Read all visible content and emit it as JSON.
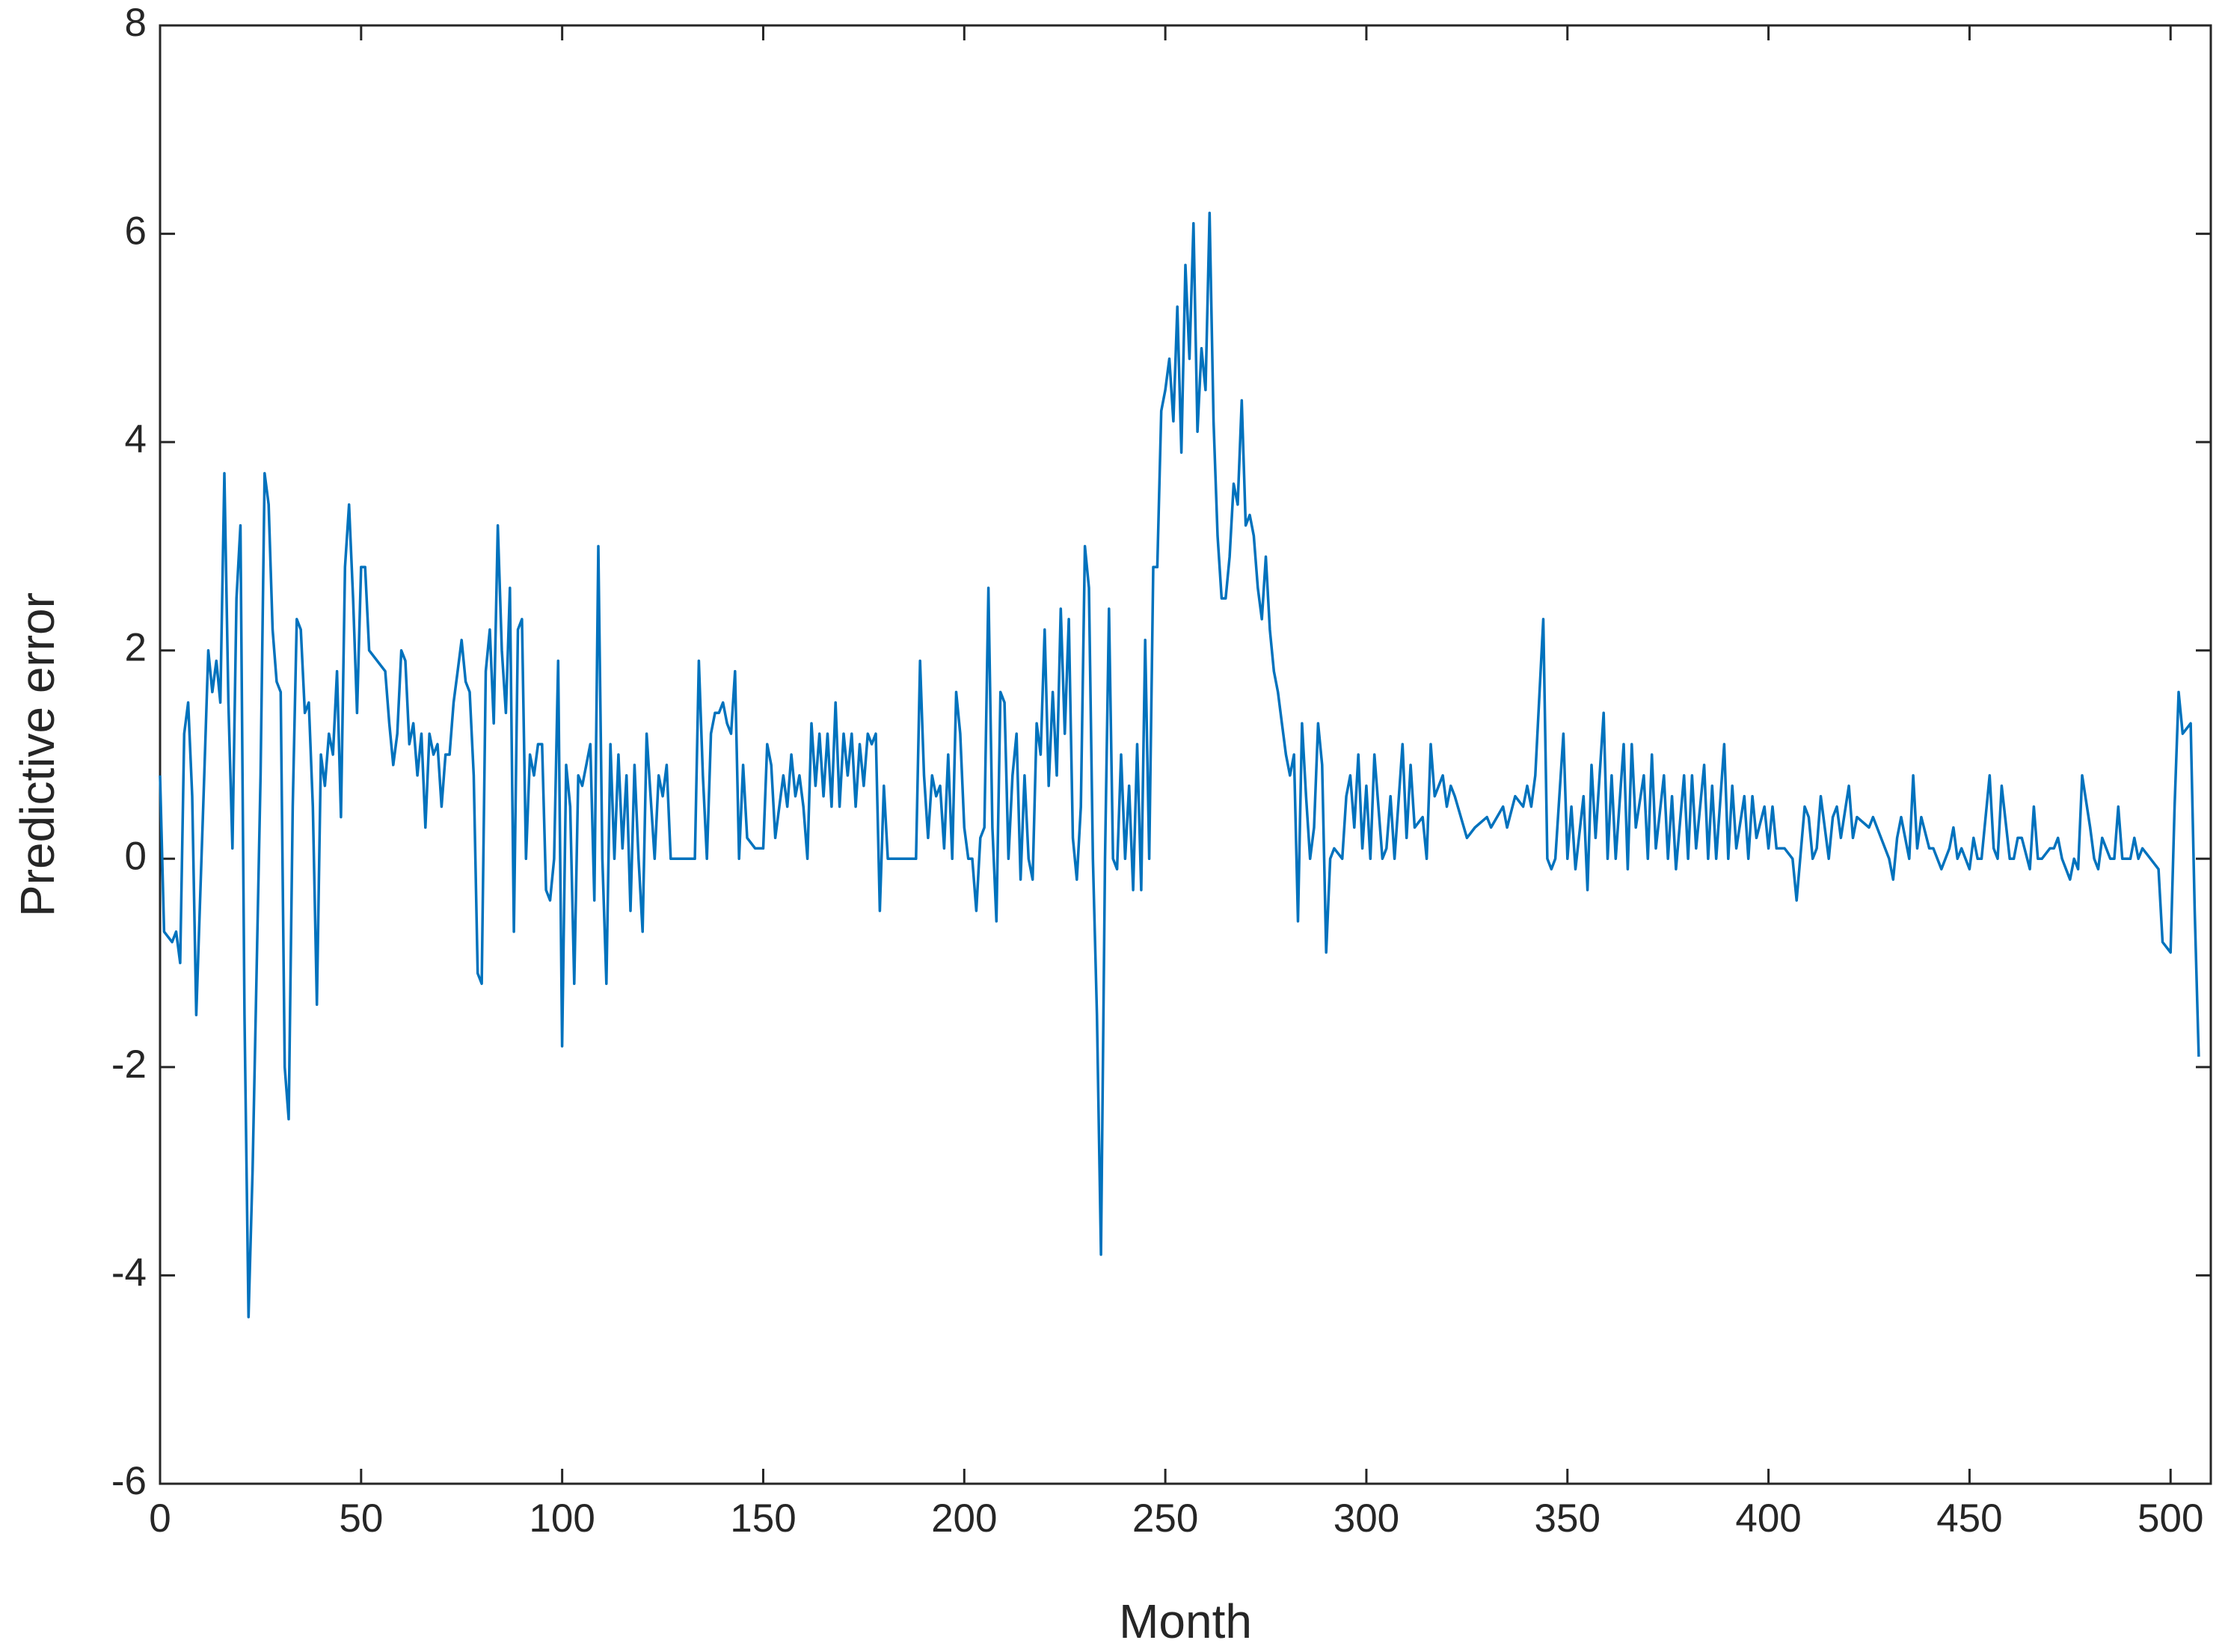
{
  "chart_data": {
    "type": "line",
    "xlabel": "Month",
    "ylabel": "Predictive error",
    "xlim": [
      0,
      510
    ],
    "ylim": [
      -6,
      8
    ],
    "xticks": [
      0,
      50,
      100,
      150,
      200,
      250,
      300,
      350,
      400,
      450,
      500
    ],
    "yticks": [
      -6,
      -4,
      -2,
      0,
      2,
      4,
      6,
      8
    ],
    "x": [
      0,
      1,
      3,
      4,
      5,
      6,
      7,
      8,
      9,
      11,
      12,
      13,
      14,
      15,
      16,
      17,
      18,
      19,
      20,
      21,
      22,
      23,
      25,
      26,
      27,
      28,
      29,
      30,
      31,
      32,
      33,
      34,
      35,
      36,
      37,
      38,
      39,
      40,
      41,
      42,
      43,
      44,
      45,
      46,
      47,
      48,
      49,
      50,
      51,
      52,
      54,
      56,
      57,
      58,
      59,
      60,
      61,
      62,
      63,
      64,
      65,
      66,
      67,
      68,
      69,
      70,
      71,
      72,
      73,
      74,
      75,
      76,
      77,
      78,
      79,
      80,
      81,
      82,
      83,
      84,
      85,
      86,
      87,
      88,
      89,
      90,
      91,
      92,
      93,
      94,
      95,
      96,
      97,
      98,
      99,
      100,
      101,
      102,
      103,
      104,
      105,
      106,
      107,
      108,
      109,
      110,
      111,
      112,
      113,
      114,
      115,
      116,
      117,
      118,
      119,
      120,
      121,
      122,
      123,
      124,
      125,
      126,
      127,
      130,
      131,
      133,
      134,
      135,
      136,
      137,
      138,
      139,
      140,
      141,
      142,
      143,
      144,
      145,
      146,
      148,
      150,
      151,
      152,
      153,
      154,
      155,
      156,
      157,
      158,
      159,
      160,
      161,
      162,
      163,
      164,
      165,
      166,
      167,
      168,
      169,
      170,
      171,
      172,
      173,
      174,
      175,
      176,
      177,
      178,
      179,
      180,
      181,
      185,
      188,
      189,
      190,
      191,
      192,
      193,
      194,
      195,
      196,
      197,
      198,
      199,
      200,
      201,
      202,
      203,
      204,
      205,
      206,
      207,
      208,
      209,
      210,
      211,
      212,
      213,
      214,
      215,
      216,
      217,
      218,
      219,
      220,
      221,
      222,
      223,
      224,
      225,
      226,
      227,
      228,
      229,
      230,
      231,
      232,
      233,
      234,
      235,
      236,
      237,
      238,
      239,
      240,
      241,
      242,
      243,
      244,
      245,
      246,
      247,
      248,
      249,
      250,
      251,
      252,
      253,
      254,
      255,
      256,
      257,
      258,
      259,
      260,
      261,
      262,
      263,
      264,
      265,
      266,
      267,
      268,
      269,
      270,
      271,
      272,
      273,
      274,
      275,
      276,
      277,
      278,
      279,
      280,
      281,
      282,
      283,
      284,
      285,
      286,
      287,
      288,
      289,
      290,
      291,
      292,
      294,
      295,
      296,
      297,
      298,
      299,
      300,
      301,
      302,
      304,
      305,
      306,
      307,
      309,
      310,
      311,
      312,
      314,
      315,
      316,
      317,
      319,
      320,
      321,
      322,
      325,
      327,
      330,
      331,
      334,
      335,
      337,
      339,
      340,
      341,
      342,
      344,
      345,
      346,
      347,
      349,
      350,
      351,
      352,
      354,
      355,
      356,
      357,
      359,
      360,
      361,
      362,
      364,
      365,
      366,
      367,
      369,
      370,
      371,
      372,
      374,
      375,
      376,
      377,
      379,
      380,
      381,
      382,
      384,
      385,
      386,
      387,
      389,
      390,
      391,
      392,
      394,
      395,
      396,
      397,
      399,
      400,
      401,
      402,
      404,
      406,
      407,
      409,
      410,
      411,
      412,
      413,
      415,
      416,
      417,
      418,
      420,
      421,
      422,
      425,
      426,
      428,
      430,
      431,
      432,
      433,
      435,
      436,
      437,
      438,
      440,
      441,
      443,
      445,
      446,
      447,
      448,
      450,
      451,
      452,
      453,
      455,
      456,
      457,
      458,
      460,
      461,
      462,
      463,
      465,
      466,
      467,
      468,
      470,
      471,
      472,
      473,
      475,
      476,
      477,
      478,
      480,
      481,
      482,
      483,
      485,
      486,
      487,
      488,
      490,
      491,
      492,
      493,
      495,
      497,
      498,
      500,
      501,
      502,
      503,
      505,
      506,
      507
    ],
    "series": [
      {
        "color": "#0072bd",
        "values": [
          0.8,
          -0.7,
          -0.8,
          -0.7,
          -1.0,
          1.2,
          1.5,
          0.6,
          -1.5,
          0.8,
          2.0,
          1.6,
          1.9,
          1.5,
          3.7,
          1.5,
          0.1,
          2.5,
          3.2,
          -1.5,
          -4.4,
          -3.0,
          0.8,
          3.7,
          3.4,
          2.2,
          1.7,
          1.6,
          -2.0,
          -2.5,
          0.5,
          2.3,
          2.2,
          1.4,
          1.5,
          0.5,
          -1.4,
          1.0,
          0.7,
          1.2,
          1.0,
          1.8,
          0.4,
          2.8,
          3.4,
          2.5,
          1.4,
          2.8,
          2.8,
          2.0,
          1.9,
          1.8,
          1.3,
          0.9,
          1.2,
          2.0,
          1.9,
          1.1,
          1.3,
          0.8,
          1.2,
          0.3,
          1.2,
          1.0,
          1.1,
          0.5,
          1.0,
          1.0,
          1.5,
          1.8,
          2.1,
          1.7,
          1.6,
          0.8,
          -1.1,
          -1.2,
          1.8,
          2.2,
          1.3,
          3.2,
          2.0,
          1.4,
          2.6,
          -0.7,
          2.2,
          2.3,
          0.0,
          1.0,
          0.8,
          1.1,
          1.1,
          -0.3,
          -0.4,
          0.0,
          1.9,
          -1.8,
          0.9,
          0.5,
          -1.2,
          0.8,
          0.7,
          0.9,
          1.1,
          -0.4,
          3.0,
          0.0,
          -1.2,
          1.1,
          0.0,
          1.0,
          0.1,
          0.8,
          -0.5,
          0.9,
          0.0,
          -0.7,
          1.2,
          0.6,
          0.0,
          0.8,
          0.6,
          0.9,
          0.0,
          0.0,
          0.0,
          0.0,
          1.9,
          0.8,
          0.0,
          1.2,
          1.4,
          1.4,
          1.5,
          1.3,
          1.2,
          1.8,
          0.0,
          0.9,
          0.2,
          0.1,
          0.1,
          1.1,
          0.9,
          0.2,
          0.5,
          0.8,
          0.5,
          1.0,
          0.6,
          0.8,
          0.5,
          0.0,
          1.3,
          0.7,
          1.2,
          0.6,
          1.2,
          0.5,
          1.5,
          0.5,
          1.2,
          0.8,
          1.2,
          0.5,
          1.1,
          0.7,
          1.2,
          1.1,
          1.2,
          -0.5,
          0.7,
          0.0,
          0.0,
          0.0,
          1.9,
          0.8,
          0.2,
          0.8,
          0.6,
          0.7,
          0.1,
          1.0,
          0.0,
          1.6,
          1.2,
          0.3,
          0.0,
          0.0,
          -0.5,
          0.2,
          0.3,
          2.6,
          0.3,
          -0.6,
          1.6,
          1.5,
          0.0,
          0.8,
          1.2,
          -0.2,
          0.8,
          0.0,
          -0.2,
          1.3,
          1.0,
          2.2,
          0.7,
          1.6,
          0.8,
          2.4,
          1.2,
          2.3,
          0.2,
          -0.2,
          0.5,
          3.0,
          2.6,
          0.0,
          -1.5,
          -3.8,
          0.0,
          2.4,
          0.0,
          -0.1,
          1.0,
          0.0,
          0.7,
          -0.3,
          1.1,
          -0.3,
          2.1,
          0.0,
          2.8,
          2.8,
          4.3,
          4.5,
          4.8,
          4.2,
          5.3,
          3.9,
          5.7,
          4.8,
          6.1,
          4.1,
          4.9,
          4.5,
          6.2,
          4.2,
          3.1,
          2.5,
          2.5,
          2.9,
          3.6,
          3.4,
          4.4,
          3.2,
          3.3,
          3.1,
          2.6,
          2.3,
          2.9,
          2.2,
          1.8,
          1.6,
          1.3,
          1.0,
          0.8,
          1.0,
          -0.6,
          1.3,
          0.6,
          0.0,
          0.3,
          1.3,
          0.9,
          -0.9,
          0.0,
          0.1,
          0.0,
          0.6,
          0.8,
          0.3,
          1.0,
          0.1,
          0.7,
          0.0,
          1.0,
          0.0,
          0.1,
          0.6,
          0.0,
          1.1,
          0.2,
          0.9,
          0.3,
          0.4,
          0.0,
          1.1,
          0.6,
          0.8,
          0.5,
          0.7,
          0.6,
          0.2,
          0.3,
          0.4,
          0.3,
          0.5,
          0.3,
          0.6,
          0.5,
          0.7,
          0.5,
          0.8,
          2.3,
          0.0,
          -0.1,
          0.0,
          1.2,
          0.0,
          0.5,
          -0.1,
          0.6,
          -0.3,
          0.9,
          0.2,
          1.4,
          0.0,
          0.8,
          0.0,
          1.1,
          -0.1,
          1.1,
          0.3,
          0.8,
          0.0,
          1.0,
          0.1,
          0.8,
          0.0,
          0.6,
          -0.1,
          0.8,
          0.0,
          0.8,
          0.1,
          0.9,
          0.0,
          0.7,
          0.0,
          1.1,
          0.0,
          0.7,
          0.1,
          0.6,
          0.0,
          0.6,
          0.2,
          0.5,
          0.1,
          0.5,
          0.1,
          0.1,
          0.0,
          -0.4,
          0.5,
          0.4,
          0.0,
          0.1,
          0.6,
          0.0,
          0.4,
          0.5,
          0.2,
          0.7,
          0.2,
          0.4,
          0.3,
          0.4,
          0.2,
          0.0,
          -0.2,
          0.2,
          0.4,
          0.0,
          0.8,
          0.1,
          0.4,
          0.1,
          0.1,
          -0.1,
          0.1,
          0.3,
          0.0,
          0.1,
          -0.1,
          0.2,
          0.0,
          0.0,
          0.8,
          0.1,
          0.0,
          0.7,
          0.0,
          0.0,
          0.2,
          0.2,
          -0.1,
          0.5,
          0.0,
          0.0,
          0.1,
          0.1,
          0.2,
          0.0,
          -0.2,
          0.0,
          -0.1,
          0.8,
          0.3,
          0.0,
          -0.1,
          0.2,
          0.0,
          0.0,
          0.5,
          0.0,
          0.0,
          0.2,
          0.0,
          0.1,
          0.0,
          -0.1,
          -0.8,
          -0.9,
          0.5,
          1.6,
          1.2,
          1.3,
          -0.5,
          -1.9
        ]
      }
    ]
  }
}
